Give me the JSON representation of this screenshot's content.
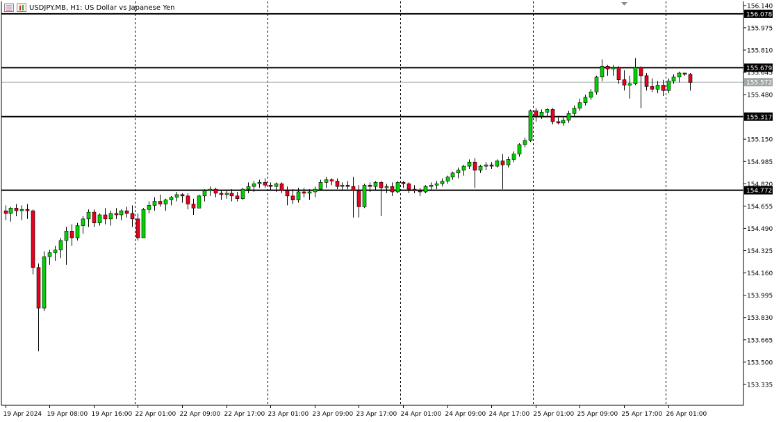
{
  "window": {
    "symbol": "USDJPY.MB",
    "timeframe": "H1",
    "description": "US Dollar vs Japanese Yen",
    "title_text": "USDJPY.MB, H1:  US Dollar vs Japanese Yen"
  },
  "colors": {
    "background": "#ffffff",
    "bull_candle": "#00d400",
    "bear_candle": "#e8001c",
    "candle_outline": "#000000",
    "level_line": "#000000",
    "bid_line": "#a0a8a8",
    "label_bg_dark": "#000000",
    "label_bg_bid": "#a0a8a8",
    "axis_text": "#000000"
  },
  "chart_data": {
    "type": "candlestick",
    "title": "USDJPY.MB, H1:  US Dollar vs Japanese Yen",
    "ylim": [
      153.18,
      156.17
    ],
    "y_ticks": [
      156.14,
      155.975,
      155.81,
      155.645,
      155.48,
      155.15,
      154.985,
      154.82,
      154.655,
      154.49,
      154.325,
      154.16,
      153.995,
      153.83,
      153.665,
      153.5,
      153.335
    ],
    "y_tick_labels": [
      "156.140",
      "155.975",
      "155.810",
      "155.645",
      "155.480",
      "155.150",
      "154.985",
      "154.820",
      "154.655",
      "154.490",
      "154.325",
      "154.160",
      "153.995",
      "153.830",
      "153.665",
      "153.500",
      "153.335"
    ],
    "x_labels": [
      "19 Apr 2024",
      "19 Apr 08:00",
      "19 Apr 16:00",
      "22 Apr 01:00",
      "22 Apr 09:00",
      "22 Apr 17:00",
      "23 Apr 01:00",
      "23 Apr 09:00",
      "23 Apr 17:00",
      "24 Apr 01:00",
      "24 Apr 09:00",
      "24 Apr 17:00",
      "25 Apr 01:00",
      "25 Apr 09:00",
      "25 Apr 17:00",
      "26 Apr 01:00"
    ],
    "x_label_bar_index": [
      0,
      8,
      16,
      24,
      32,
      40,
      48,
      56,
      64,
      72,
      80,
      88,
      96,
      104,
      112,
      120
    ],
    "day_separator_bar_index": [
      23,
      47,
      71,
      95,
      119
    ],
    "horizontal_levels": [
      156.078,
      155.679,
      155.317,
      154.772
    ],
    "horizontal_level_labels": [
      "156.078",
      "155.679",
      "155.317",
      "154.772"
    ],
    "bid": 155.572,
    "bid_label": "155.572",
    "grid": false,
    "candles": [
      [
        154.62,
        154.66,
        154.55,
        154.6
      ],
      [
        154.6,
        154.65,
        154.54,
        154.64
      ],
      [
        154.64,
        154.67,
        154.58,
        154.62
      ],
      [
        154.62,
        154.66,
        154.55,
        154.63
      ],
      [
        154.63,
        154.67,
        154.56,
        154.62
      ],
      [
        154.62,
        154.63,
        154.15,
        154.2
      ],
      [
        154.2,
        154.23,
        153.58,
        153.9
      ],
      [
        153.9,
        154.32,
        153.88,
        154.28
      ],
      [
        154.28,
        154.33,
        154.22,
        154.31
      ],
      [
        154.31,
        154.36,
        154.25,
        154.33
      ],
      [
        154.33,
        154.42,
        154.27,
        154.4
      ],
      [
        154.4,
        154.5,
        154.22,
        154.47
      ],
      [
        154.47,
        154.52,
        154.36,
        154.42
      ],
      [
        154.42,
        154.53,
        154.4,
        154.51
      ],
      [
        154.51,
        154.58,
        154.45,
        154.56
      ],
      [
        154.56,
        154.63,
        154.5,
        154.61
      ],
      [
        154.61,
        154.63,
        154.5,
        154.53
      ],
      [
        154.53,
        154.6,
        154.51,
        154.59
      ],
      [
        154.59,
        154.64,
        154.52,
        154.56
      ],
      [
        154.56,
        154.62,
        154.51,
        154.6
      ],
      [
        154.6,
        154.64,
        154.56,
        154.59
      ],
      [
        154.59,
        154.63,
        154.55,
        154.62
      ],
      [
        154.62,
        154.65,
        154.57,
        154.6
      ],
      [
        154.6,
        154.66,
        154.5,
        154.56
      ],
      [
        154.56,
        154.6,
        154.4,
        154.42
      ],
      [
        154.42,
        154.64,
        154.43,
        154.63
      ],
      [
        154.63,
        154.69,
        154.6,
        154.66
      ],
      [
        154.66,
        154.72,
        154.62,
        154.69
      ],
      [
        154.69,
        154.74,
        154.65,
        154.67
      ],
      [
        154.67,
        154.71,
        154.62,
        154.7
      ],
      [
        154.7,
        154.73,
        154.66,
        154.72
      ],
      [
        154.72,
        154.76,
        154.69,
        154.74
      ],
      [
        154.74,
        154.75,
        154.68,
        154.73
      ],
      [
        154.73,
        154.75,
        154.63,
        154.67
      ],
      [
        154.67,
        154.71,
        154.59,
        154.64
      ],
      [
        154.64,
        154.74,
        154.64,
        154.73
      ],
      [
        154.73,
        154.78,
        154.69,
        154.77
      ],
      [
        154.77,
        154.8,
        154.73,
        154.78
      ],
      [
        154.78,
        154.79,
        154.72,
        154.75
      ],
      [
        154.75,
        154.77,
        154.7,
        154.74
      ],
      [
        154.74,
        154.77,
        154.71,
        154.75
      ],
      [
        154.75,
        154.78,
        154.69,
        154.73
      ],
      [
        154.73,
        154.76,
        154.69,
        154.71
      ],
      [
        154.71,
        154.79,
        154.7,
        154.78
      ],
      [
        154.78,
        154.83,
        154.75,
        154.8
      ],
      [
        154.8,
        154.84,
        154.76,
        154.82
      ],
      [
        154.82,
        154.85,
        154.79,
        154.83
      ],
      [
        154.83,
        154.86,
        154.79,
        154.81
      ],
      [
        154.81,
        154.83,
        154.77,
        154.8
      ],
      [
        154.8,
        154.83,
        154.76,
        154.82
      ],
      [
        154.82,
        154.83,
        154.75,
        154.77
      ],
      [
        154.77,
        154.8,
        154.66,
        154.73
      ],
      [
        154.73,
        154.78,
        154.67,
        154.7
      ],
      [
        154.7,
        154.79,
        154.68,
        154.76
      ],
      [
        154.76,
        154.79,
        154.72,
        154.75
      ],
      [
        154.75,
        154.78,
        154.7,
        154.76
      ],
      [
        154.76,
        154.8,
        154.72,
        154.78
      ],
      [
        154.78,
        154.85,
        154.77,
        154.83
      ],
      [
        154.83,
        154.87,
        154.79,
        154.85
      ],
      [
        154.85,
        154.86,
        154.81,
        154.84
      ],
      [
        154.84,
        154.86,
        154.78,
        154.8
      ],
      [
        154.8,
        154.83,
        154.77,
        154.81
      ],
      [
        154.81,
        154.84,
        154.78,
        154.8
      ],
      [
        154.8,
        154.87,
        154.57,
        154.77
      ],
      [
        154.77,
        154.81,
        154.57,
        154.65
      ],
      [
        154.65,
        154.82,
        154.64,
        154.81
      ],
      [
        154.81,
        154.83,
        154.76,
        154.8
      ],
      [
        154.8,
        154.84,
        154.77,
        154.83
      ],
      [
        154.83,
        154.84,
        154.58,
        154.79
      ],
      [
        154.79,
        154.82,
        154.75,
        154.8
      ],
      [
        154.8,
        154.83,
        154.73,
        154.76
      ],
      [
        154.76,
        154.84,
        154.75,
        154.83
      ],
      [
        154.83,
        154.84,
        154.79,
        154.82
      ],
      [
        154.82,
        154.83,
        154.75,
        154.78
      ],
      [
        154.78,
        154.81,
        154.75,
        154.77
      ],
      [
        154.77,
        154.79,
        154.73,
        154.76
      ],
      [
        154.76,
        154.81,
        154.75,
        154.8
      ],
      [
        154.8,
        154.83,
        154.77,
        154.81
      ],
      [
        154.81,
        154.84,
        154.78,
        154.82
      ],
      [
        154.82,
        154.86,
        154.8,
        154.84
      ],
      [
        154.84,
        154.88,
        154.82,
        154.87
      ],
      [
        154.87,
        154.91,
        154.85,
        154.9
      ],
      [
        154.9,
        154.94,
        154.86,
        154.92
      ],
      [
        154.92,
        154.96,
        154.88,
        154.95
      ],
      [
        154.95,
        155.0,
        154.93,
        154.98
      ],
      [
        154.98,
        155.01,
        154.79,
        154.92
      ],
      [
        154.92,
        154.96,
        154.9,
        154.95
      ],
      [
        154.95,
        154.98,
        154.92,
        154.96
      ],
      [
        154.96,
        154.98,
        154.93,
        154.95
      ],
      [
        154.95,
        155.0,
        154.94,
        154.99
      ],
      [
        154.99,
        155.04,
        154.78,
        154.96
      ],
      [
        154.96,
        155.02,
        154.94,
        155.0
      ],
      [
        155.0,
        155.06,
        154.98,
        155.04
      ],
      [
        155.04,
        155.12,
        155.02,
        155.11
      ],
      [
        155.11,
        155.16,
        155.09,
        155.14
      ],
      [
        155.14,
        155.37,
        155.13,
        155.36
      ],
      [
        155.36,
        155.38,
        155.28,
        155.32
      ],
      [
        155.32,
        155.37,
        155.3,
        155.35
      ],
      [
        155.35,
        155.38,
        155.32,
        155.37
      ],
      [
        155.37,
        155.38,
        155.26,
        155.28
      ],
      [
        155.28,
        155.31,
        155.26,
        155.27
      ],
      [
        155.27,
        155.31,
        155.25,
        155.29
      ],
      [
        155.29,
        155.36,
        155.27,
        155.34
      ],
      [
        155.34,
        155.4,
        155.32,
        155.38
      ],
      [
        155.38,
        155.45,
        155.36,
        155.42
      ],
      [
        155.42,
        155.48,
        155.4,
        155.46
      ],
      [
        155.46,
        155.52,
        155.44,
        155.5
      ],
      [
        155.5,
        155.62,
        155.48,
        155.61
      ],
      [
        155.61,
        155.74,
        155.58,
        155.69
      ],
      [
        155.69,
        155.7,
        155.62,
        155.67
      ],
      [
        155.67,
        155.7,
        155.62,
        155.68
      ],
      [
        155.68,
        155.69,
        155.56,
        155.59
      ],
      [
        155.59,
        155.66,
        155.51,
        155.55
      ],
      [
        155.55,
        155.62,
        155.45,
        155.56
      ],
      [
        155.56,
        155.75,
        155.55,
        155.68
      ],
      [
        155.68,
        155.69,
        155.38,
        155.62
      ],
      [
        155.62,
        155.64,
        155.51,
        155.54
      ],
      [
        155.54,
        155.6,
        155.5,
        155.52
      ],
      [
        155.52,
        155.58,
        155.49,
        155.55
      ],
      [
        155.55,
        155.59,
        155.47,
        155.51
      ],
      [
        155.51,
        155.6,
        155.49,
        155.58
      ],
      [
        155.58,
        155.63,
        155.56,
        155.61
      ],
      [
        155.61,
        155.65,
        155.57,
        155.64
      ],
      [
        155.64,
        155.64,
        155.62,
        155.63
      ],
      [
        155.63,
        155.64,
        155.51,
        155.57
      ]
    ]
  }
}
